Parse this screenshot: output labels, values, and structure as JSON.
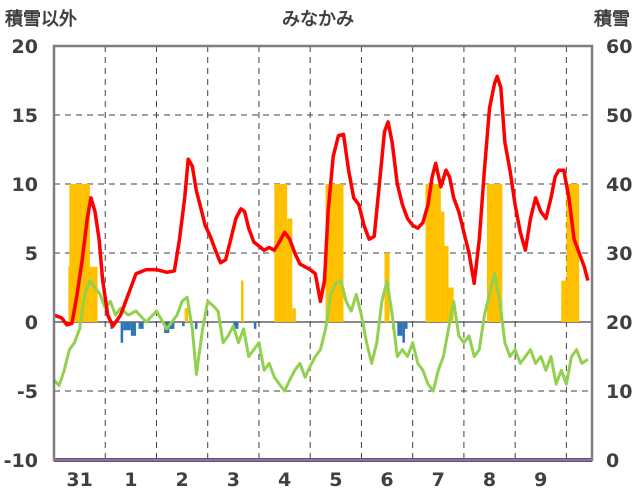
{
  "chart_data": {
    "type": "bar+line",
    "title": "みなかみ",
    "ylabel_left": "積雪以外",
    "ylabel_right": "積雪",
    "ylim_left": [
      -10,
      20
    ],
    "ylim_right": [
      0,
      60
    ],
    "y_ticks_left": [
      "20",
      "15",
      "10",
      "5",
      "0",
      "-5",
      "-10"
    ],
    "y_ticks_right": [
      "60",
      "50",
      "40",
      "30",
      "20",
      "10",
      "0"
    ],
    "x_ticks": [
      "31",
      "1",
      "2",
      "3",
      "4",
      "5",
      "6",
      "7",
      "8",
      "9"
    ],
    "x_range_days": [
      0,
      10.5
    ],
    "colors": {
      "red_line": "#ff0000",
      "green_line": "#92d050",
      "snow_bar": "#ffc000",
      "negative_bar": "#2e75b6",
      "snow_depth_line": "#7030a0",
      "frame": "#7f7f7f",
      "grid": "#404040"
    },
    "snow_depth_series": {
      "name": "",
      "points": [
        [
          0.0,
          0.0
        ],
        [
          10.5,
          0.0
        ]
      ]
    },
    "red_series": {
      "name": "",
      "points": [
        [
          0.0,
          0.5
        ],
        [
          0.15,
          0.3
        ],
        [
          0.25,
          -0.2
        ],
        [
          0.35,
          -0.1
        ],
        [
          0.45,
          2.0
        ],
        [
          0.55,
          4.5
        ],
        [
          0.65,
          7.5
        ],
        [
          0.72,
          9.0
        ],
        [
          0.8,
          8.0
        ],
        [
          0.88,
          6.0
        ],
        [
          0.95,
          3.0
        ],
        [
          1.05,
          0.5
        ],
        [
          1.15,
          -0.3
        ],
        [
          1.3,
          0.5
        ],
        [
          1.45,
          2.0
        ],
        [
          1.6,
          3.5
        ],
        [
          1.8,
          3.8
        ],
        [
          2.0,
          3.8
        ],
        [
          2.2,
          3.6
        ],
        [
          2.35,
          3.7
        ],
        [
          2.45,
          6.0
        ],
        [
          2.55,
          9.0
        ],
        [
          2.62,
          11.8
        ],
        [
          2.7,
          11.3
        ],
        [
          2.78,
          9.5
        ],
        [
          2.85,
          8.5
        ],
        [
          2.95,
          7.0
        ],
        [
          3.05,
          6.2
        ],
        [
          3.15,
          5.2
        ],
        [
          3.25,
          4.3
        ],
        [
          3.35,
          4.5
        ],
        [
          3.45,
          6.0
        ],
        [
          3.55,
          7.5
        ],
        [
          3.65,
          8.2
        ],
        [
          3.72,
          8.0
        ],
        [
          3.8,
          6.8
        ],
        [
          3.9,
          5.8
        ],
        [
          4.0,
          5.5
        ],
        [
          4.1,
          5.2
        ],
        [
          4.2,
          5.4
        ],
        [
          4.3,
          5.2
        ],
        [
          4.4,
          5.8
        ],
        [
          4.5,
          6.5
        ],
        [
          4.6,
          6.0
        ],
        [
          4.7,
          5.0
        ],
        [
          4.8,
          4.2
        ],
        [
          4.9,
          4.0
        ],
        [
          5.0,
          3.8
        ],
        [
          5.1,
          3.5
        ],
        [
          5.2,
          1.5
        ],
        [
          5.28,
          3.0
        ],
        [
          5.35,
          8.0
        ],
        [
          5.45,
          12.0
        ],
        [
          5.55,
          13.5
        ],
        [
          5.65,
          13.6
        ],
        [
          5.75,
          11.0
        ],
        [
          5.85,
          9.0
        ],
        [
          5.95,
          8.5
        ],
        [
          6.05,
          7.0
        ],
        [
          6.15,
          6.0
        ],
        [
          6.25,
          6.2
        ],
        [
          6.35,
          10.0
        ],
        [
          6.45,
          13.8
        ],
        [
          6.52,
          14.5
        ],
        [
          6.6,
          13.0
        ],
        [
          6.7,
          10.0
        ],
        [
          6.8,
          8.5
        ],
        [
          6.9,
          7.5
        ],
        [
          7.0,
          7.0
        ],
        [
          7.1,
          6.8
        ],
        [
          7.2,
          7.2
        ],
        [
          7.3,
          8.5
        ],
        [
          7.38,
          10.5
        ],
        [
          7.45,
          11.5
        ],
        [
          7.55,
          9.8
        ],
        [
          7.65,
          11.0
        ],
        [
          7.72,
          10.5
        ],
        [
          7.8,
          9.0
        ],
        [
          7.9,
          8.0
        ],
        [
          8.0,
          6.5
        ],
        [
          8.1,
          5.0
        ],
        [
          8.2,
          2.8
        ],
        [
          8.3,
          6.0
        ],
        [
          8.4,
          11.0
        ],
        [
          8.5,
          15.5
        ],
        [
          8.6,
          17.3
        ],
        [
          8.65,
          17.8
        ],
        [
          8.72,
          17.0
        ],
        [
          8.8,
          13.0
        ],
        [
          8.9,
          11.0
        ],
        [
          9.0,
          8.5
        ],
        [
          9.1,
          6.5
        ],
        [
          9.2,
          5.2
        ],
        [
          9.3,
          7.5
        ],
        [
          9.4,
          9.0
        ],
        [
          9.5,
          8.0
        ],
        [
          9.6,
          7.5
        ],
        [
          9.7,
          9.0
        ],
        [
          9.78,
          10.5
        ],
        [
          9.85,
          11.0
        ],
        [
          9.95,
          11.0
        ],
        [
          10.05,
          9.0
        ],
        [
          10.15,
          6.0
        ],
        [
          10.25,
          5.0
        ],
        [
          10.35,
          4.0
        ],
        [
          10.42,
          3.0
        ]
      ]
    },
    "green_series": {
      "name": "",
      "points": [
        [
          0.0,
          -4.2
        ],
        [
          0.1,
          -4.6
        ],
        [
          0.2,
          -3.5
        ],
        [
          0.3,
          -2.0
        ],
        [
          0.4,
          -1.5
        ],
        [
          0.5,
          -0.5
        ],
        [
          0.6,
          2.0
        ],
        [
          0.7,
          3.0
        ],
        [
          0.8,
          2.5
        ],
        [
          0.9,
          2.0
        ],
        [
          1.0,
          1.0
        ],
        [
          1.1,
          1.5
        ],
        [
          1.2,
          0.5
        ],
        [
          1.3,
          1.0
        ],
        [
          1.45,
          0.5
        ],
        [
          1.6,
          0.8
        ],
        [
          1.8,
          0.0
        ],
        [
          2.0,
          0.8
        ],
        [
          2.2,
          -0.5
        ],
        [
          2.4,
          0.5
        ],
        [
          2.5,
          1.5
        ],
        [
          2.6,
          1.8
        ],
        [
          2.7,
          -0.5
        ],
        [
          2.78,
          -3.8
        ],
        [
          2.9,
          -0.5
        ],
        [
          3.0,
          1.5
        ],
        [
          3.1,
          1.2
        ],
        [
          3.2,
          0.8
        ],
        [
          3.3,
          -1.5
        ],
        [
          3.4,
          -1.0
        ],
        [
          3.5,
          -0.3
        ],
        [
          3.6,
          -1.5
        ],
        [
          3.7,
          -0.5
        ],
        [
          3.8,
          -2.5
        ],
        [
          3.9,
          -2.0
        ],
        [
          4.0,
          -1.5
        ],
        [
          4.1,
          -3.5
        ],
        [
          4.2,
          -3.0
        ],
        [
          4.3,
          -4.0
        ],
        [
          4.4,
          -4.5
        ],
        [
          4.5,
          -5.0
        ],
        [
          4.6,
          -4.2
        ],
        [
          4.7,
          -3.5
        ],
        [
          4.8,
          -3.0
        ],
        [
          4.9,
          -4.0
        ],
        [
          5.0,
          -3.2
        ],
        [
          5.1,
          -2.5
        ],
        [
          5.2,
          -2.0
        ],
        [
          5.3,
          -0.5
        ],
        [
          5.4,
          2.0
        ],
        [
          5.5,
          2.8
        ],
        [
          5.6,
          3.0
        ],
        [
          5.7,
          1.5
        ],
        [
          5.8,
          0.8
        ],
        [
          5.9,
          2.0
        ],
        [
          6.0,
          0.5
        ],
        [
          6.1,
          -1.5
        ],
        [
          6.2,
          -3.0
        ],
        [
          6.3,
          -1.5
        ],
        [
          6.4,
          1.5
        ],
        [
          6.5,
          3.0
        ],
        [
          6.6,
          0.5
        ],
        [
          6.7,
          -2.5
        ],
        [
          6.8,
          -2.0
        ],
        [
          6.9,
          -2.5
        ],
        [
          7.0,
          -1.5
        ],
        [
          7.1,
          -3.0
        ],
        [
          7.2,
          -3.5
        ],
        [
          7.3,
          -4.5
        ],
        [
          7.4,
          -5.0
        ],
        [
          7.5,
          -3.5
        ],
        [
          7.6,
          -2.5
        ],
        [
          7.7,
          -0.5
        ],
        [
          7.8,
          1.5
        ],
        [
          7.9,
          -1.0
        ],
        [
          8.0,
          -1.5
        ],
        [
          8.1,
          -1.0
        ],
        [
          8.2,
          -2.5
        ],
        [
          8.3,
          -2.0
        ],
        [
          8.4,
          0.5
        ],
        [
          8.5,
          2.0
        ],
        [
          8.6,
          3.5
        ],
        [
          8.7,
          1.5
        ],
        [
          8.8,
          -1.5
        ],
        [
          8.9,
          -2.5
        ],
        [
          9.0,
          -2.0
        ],
        [
          9.1,
          -3.0
        ],
        [
          9.2,
          -2.5
        ],
        [
          9.3,
          -2.0
        ],
        [
          9.4,
          -3.0
        ],
        [
          9.5,
          -2.5
        ],
        [
          9.6,
          -3.5
        ],
        [
          9.7,
          -2.5
        ],
        [
          9.8,
          -4.5
        ],
        [
          9.9,
          -3.5
        ],
        [
          10.0,
          -4.5
        ],
        [
          10.1,
          -2.5
        ],
        [
          10.2,
          -2.0
        ],
        [
          10.3,
          -3.0
        ],
        [
          10.42,
          -2.7
        ]
      ]
    },
    "snow_bars": [
      {
        "from": 0.3,
        "to": 0.55,
        "value": 10.0
      },
      {
        "from": 0.28,
        "to": 0.32,
        "value": 4.0
      },
      {
        "from": 0.55,
        "to": 0.7,
        "value": 10.0
      },
      {
        "from": 0.7,
        "to": 0.85,
        "value": 4.0
      },
      {
        "from": 2.55,
        "to": 2.62,
        "value": 1.0
      },
      {
        "from": 3.65,
        "to": 3.7,
        "value": 3.0
      },
      {
        "from": 4.3,
        "to": 4.55,
        "value": 10.0
      },
      {
        "from": 4.55,
        "to": 4.65,
        "value": 7.5
      },
      {
        "from": 4.65,
        "to": 4.72,
        "value": 1.0
      },
      {
        "from": 5.3,
        "to": 5.65,
        "value": 10.0
      },
      {
        "from": 6.45,
        "to": 6.55,
        "value": 5.0
      },
      {
        "from": 7.25,
        "to": 7.55,
        "value": 10.0
      },
      {
        "from": 7.55,
        "to": 7.62,
        "value": 8.0
      },
      {
        "from": 7.62,
        "to": 7.7,
        "value": 5.5
      },
      {
        "from": 7.7,
        "to": 7.8,
        "value": 2.5
      },
      {
        "from": 8.45,
        "to": 8.75,
        "value": 10.0
      },
      {
        "from": 9.9,
        "to": 10.0,
        "value": 3.0
      },
      {
        "from": 10.0,
        "to": 10.25,
        "value": 10.0
      }
    ],
    "negative_bars": [
      {
        "from": 1.1,
        "to": 1.15,
        "value": -0.5
      },
      {
        "from": 1.3,
        "to": 1.35,
        "value": -1.5
      },
      {
        "from": 1.35,
        "to": 1.5,
        "value": -0.6
      },
      {
        "from": 1.5,
        "to": 1.6,
        "value": -1.0
      },
      {
        "from": 1.65,
        "to": 1.75,
        "value": -0.5
      },
      {
        "from": 2.15,
        "to": 2.25,
        "value": -0.8
      },
      {
        "from": 2.25,
        "to": 2.35,
        "value": -0.5
      },
      {
        "from": 2.5,
        "to": 2.55,
        "value": -0.3
      },
      {
        "from": 2.75,
        "to": 2.8,
        "value": -0.5
      },
      {
        "from": 3.5,
        "to": 3.6,
        "value": -0.5
      },
      {
        "from": 3.9,
        "to": 3.95,
        "value": -0.5
      },
      {
        "from": 6.6,
        "to": 6.65,
        "value": -0.5
      },
      {
        "from": 6.7,
        "to": 6.8,
        "value": -1.0
      },
      {
        "from": 6.8,
        "to": 6.85,
        "value": -1.5
      },
      {
        "from": 6.85,
        "to": 6.9,
        "value": -0.5
      }
    ]
  }
}
